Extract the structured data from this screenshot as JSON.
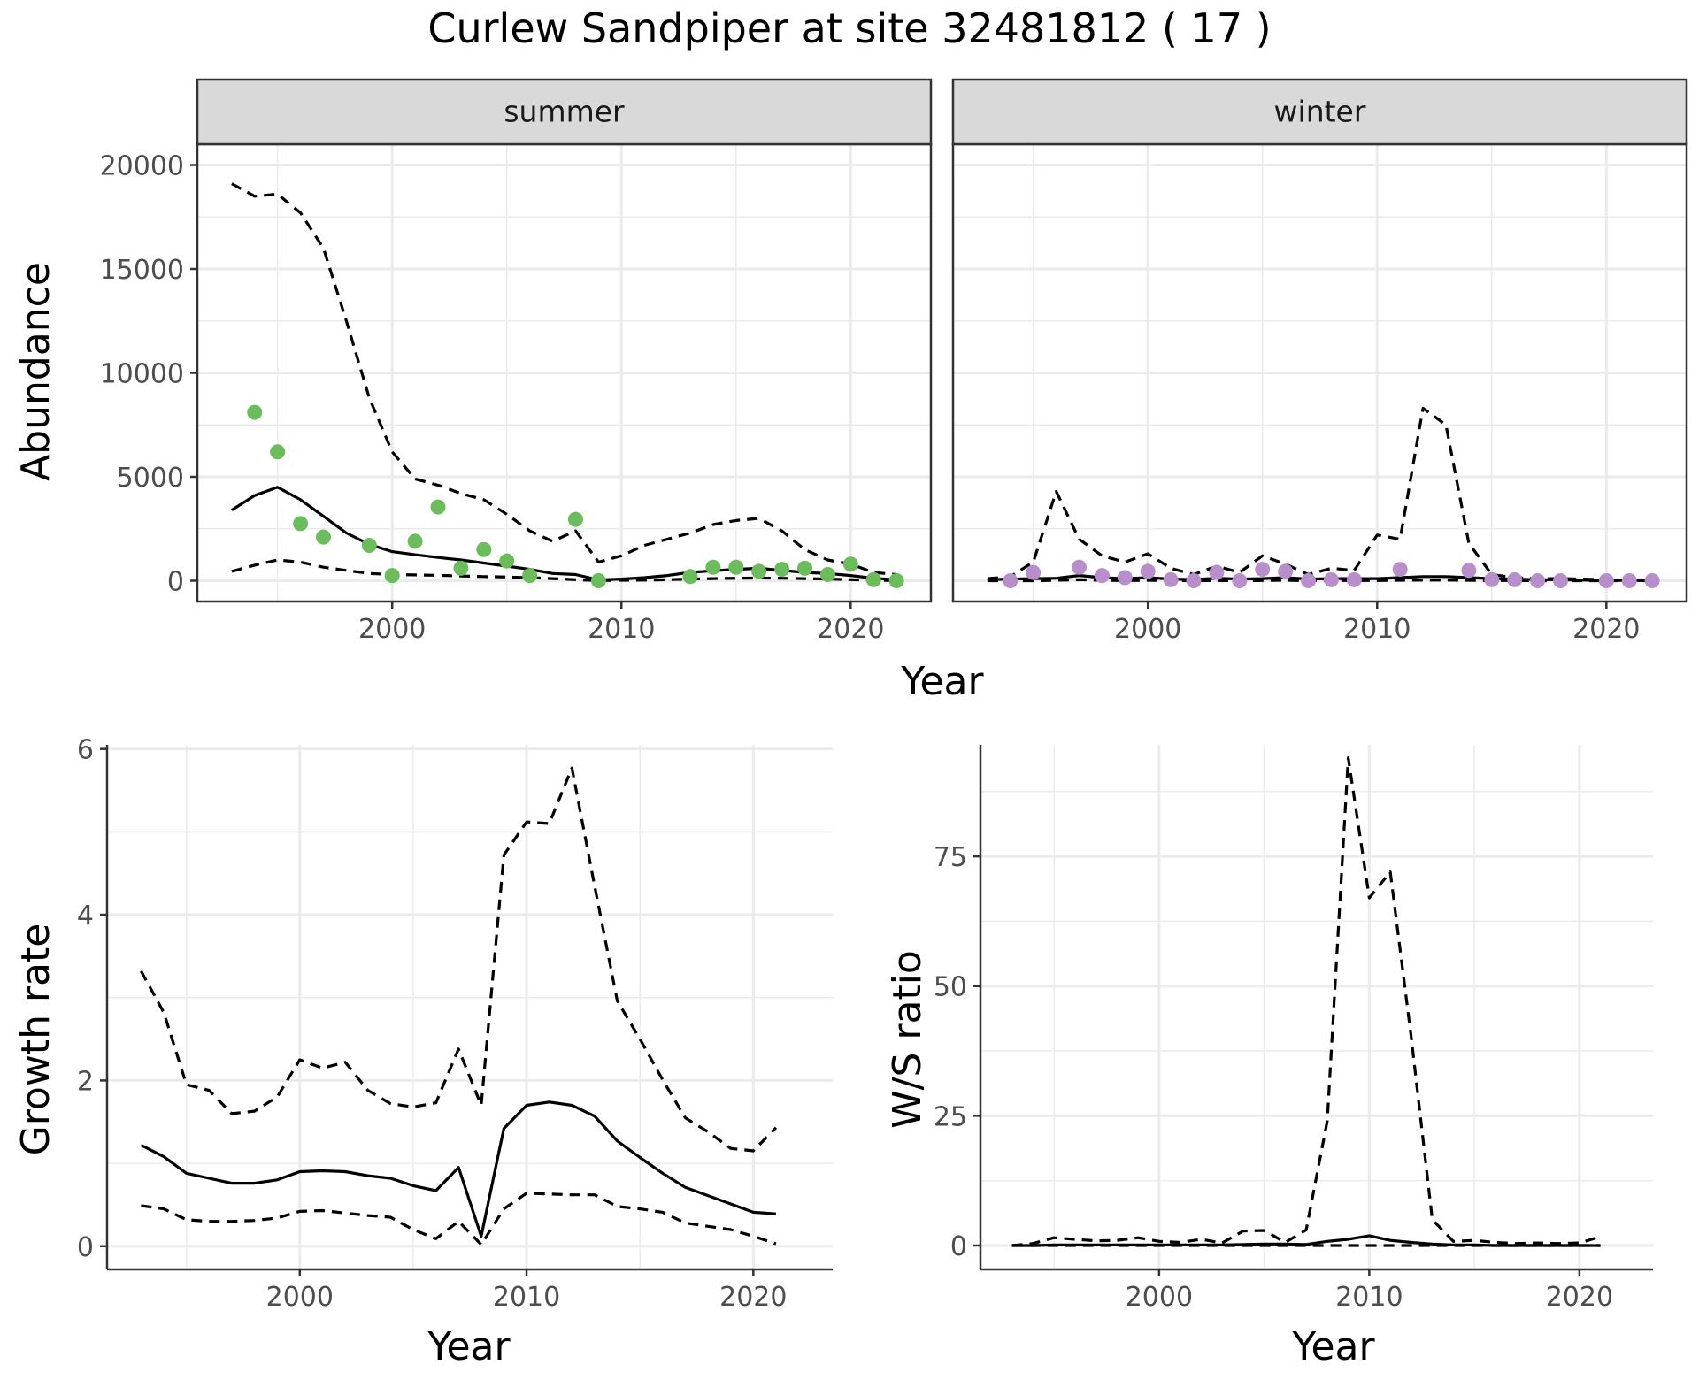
{
  "title": "Curlew Sandpiper at site 32481812 ( 17 )",
  "colors": {
    "summer_points": "#6abd5a",
    "winter_points": "#b88fca",
    "lines": "#000000",
    "grid": "#ebebeb",
    "strip_bg": "#d9d9d9"
  },
  "chart_data": [
    {
      "id": "summer",
      "type": "scatter",
      "panel_label": "summer",
      "ylabel": "Abundance",
      "xlabel": "Year",
      "xlim": [
        1991.5,
        2023.5
      ],
      "ylim": [
        -1000,
        21000
      ],
      "xticks": [
        2000,
        2010,
        2020
      ],
      "yticks": [
        0,
        5000,
        10000,
        15000,
        20000
      ],
      "points": {
        "x": [
          1994,
          1995,
          1996,
          1997,
          1999,
          2000,
          2001,
          2002,
          2003,
          2004,
          2005,
          2006,
          2008,
          2009,
          2013,
          2014,
          2015,
          2016,
          2017,
          2018,
          2019,
          2020,
          2021,
          2022
        ],
        "y": [
          8100,
          6200,
          2750,
          2100,
          1700,
          250,
          1900,
          3550,
          600,
          1500,
          950,
          250,
          2950,
          0,
          200,
          650,
          650,
          450,
          550,
          600,
          300,
          800,
          50,
          0
        ]
      },
      "series": [
        {
          "style": "solid",
          "x": [
            1993,
            1994,
            1995,
            1996,
            1997,
            1998,
            1999,
            2000,
            2001,
            2002,
            2003,
            2004,
            2005,
            2006,
            2007,
            2008,
            2009,
            2010,
            2011,
            2012,
            2013,
            2014,
            2015,
            2016,
            2017,
            2018,
            2019,
            2020,
            2021,
            2022
          ],
          "y": [
            3400,
            4100,
            4500,
            3900,
            3100,
            2300,
            1750,
            1400,
            1250,
            1120,
            1000,
            850,
            700,
            550,
            350,
            300,
            40,
            80,
            150,
            250,
            400,
            480,
            550,
            600,
            500,
            400,
            350,
            250,
            120,
            50
          ]
        },
        {
          "style": "dashed",
          "x": [
            1993,
            1994,
            1995,
            1996,
            1997,
            1998,
            1999,
            2000,
            2001,
            2002,
            2003,
            2004,
            2005,
            2006,
            2007,
            2008,
            2009,
            2010,
            2011,
            2012,
            2013,
            2014,
            2015,
            2016,
            2017,
            2018,
            2019,
            2020,
            2021,
            2022
          ],
          "y": [
            19100,
            18500,
            18600,
            17700,
            16000,
            12500,
            8800,
            6200,
            4900,
            4600,
            4200,
            3900,
            3200,
            2400,
            1900,
            2400,
            900,
            1200,
            1700,
            2000,
            2300,
            2700,
            2900,
            3000,
            2400,
            1500,
            1000,
            800,
            400,
            300
          ]
        },
        {
          "style": "dashed",
          "x": [
            1993,
            1994,
            1995,
            1996,
            1997,
            1998,
            1999,
            2000,
            2001,
            2002,
            2003,
            2004,
            2005,
            2006,
            2007,
            2008,
            2009,
            2010,
            2011,
            2012,
            2013,
            2014,
            2015,
            2016,
            2017,
            2018,
            2019,
            2020,
            2021,
            2022
          ],
          "y": [
            450,
            750,
            1000,
            900,
            650,
            500,
            350,
            300,
            280,
            260,
            230,
            200,
            180,
            150,
            100,
            50,
            10,
            20,
            30,
            50,
            80,
            100,
            120,
            130,
            120,
            100,
            80,
            50,
            20,
            10
          ]
        }
      ]
    },
    {
      "id": "winter",
      "type": "scatter",
      "panel_label": "winter",
      "xlabel": "Year",
      "xlim": [
        1991.5,
        2023.5
      ],
      "ylim": [
        -1000,
        21000
      ],
      "xticks": [
        2000,
        2010,
        2020
      ],
      "points": {
        "x": [
          1994,
          1995,
          1997,
          1998,
          1999,
          2000,
          2001,
          2002,
          2003,
          2004,
          2005,
          2006,
          2007,
          2008,
          2009,
          2011,
          2014,
          2015,
          2016,
          2017,
          2018,
          2020,
          2021,
          2022
        ],
        "y": [
          0,
          400,
          650,
          250,
          150,
          450,
          50,
          0,
          400,
          0,
          550,
          450,
          0,
          50,
          50,
          550,
          500,
          50,
          50,
          0,
          0,
          0,
          0,
          0
        ]
      },
      "series": [
        {
          "style": "solid",
          "x": [
            1993,
            1994,
            1995,
            1996,
            1997,
            1998,
            1999,
            2000,
            2001,
            2002,
            2003,
            2004,
            2005,
            2006,
            2007,
            2008,
            2009,
            2010,
            2011,
            2012,
            2013,
            2014,
            2015,
            2016,
            2017,
            2018,
            2019,
            2020,
            2021,
            2022
          ],
          "y": [
            50,
            80,
            100,
            120,
            250,
            150,
            100,
            150,
            80,
            60,
            120,
            80,
            100,
            150,
            80,
            100,
            100,
            100,
            150,
            200,
            200,
            150,
            100,
            80,
            50,
            50,
            30,
            20,
            10,
            10
          ]
        },
        {
          "style": "dashed",
          "x": [
            1993,
            1994,
            1995,
            1996,
            1997,
            1998,
            1999,
            2000,
            2001,
            2002,
            2003,
            2004,
            2005,
            2006,
            2007,
            2008,
            2009,
            2010,
            2011,
            2012,
            2013,
            2014,
            2015,
            2016,
            2017,
            2018,
            2019,
            2020,
            2021,
            2022
          ],
          "y": [
            100,
            200,
            900,
            4300,
            2000,
            1200,
            900,
            1300,
            600,
            300,
            700,
            400,
            1200,
            800,
            300,
            600,
            500,
            2200,
            2000,
            8300,
            7500,
            1800,
            300,
            150,
            100,
            100,
            80,
            50,
            30,
            20
          ]
        },
        {
          "style": "dashed",
          "x": [
            1993,
            1994,
            1995,
            1996,
            1997,
            1998,
            1999,
            2000,
            2001,
            2002,
            2003,
            2004,
            2005,
            2006,
            2007,
            2008,
            2009,
            2010,
            2011,
            2012,
            2013,
            2014,
            2015,
            2016,
            2017,
            2018,
            2019,
            2020,
            2021,
            2022
          ],
          "y": [
            0,
            0,
            0,
            20,
            50,
            20,
            10,
            20,
            10,
            0,
            10,
            0,
            10,
            20,
            0,
            10,
            10,
            10,
            20,
            30,
            30,
            20,
            10,
            10,
            0,
            0,
            0,
            0,
            0,
            0
          ]
        }
      ]
    },
    {
      "id": "growth",
      "type": "line",
      "ylabel": "Growth rate",
      "xlabel": "Year",
      "xlim": [
        1991.5,
        2023.5
      ],
      "ylim": [
        -0.28,
        6.05
      ],
      "xticks": [
        2000,
        2010,
        2020
      ],
      "yticks": [
        0,
        2,
        4,
        6
      ],
      "series": [
        {
          "style": "solid",
          "x": [
            1993,
            1994,
            1995,
            1996,
            1997,
            1998,
            1999,
            2000,
            2001,
            2002,
            2003,
            2004,
            2005,
            2006,
            2007,
            2008,
            2009,
            2010,
            2011,
            2012,
            2013,
            2014,
            2015,
            2016,
            2017,
            2018,
            2019,
            2020,
            2021
          ],
          "y": [
            1.22,
            1.08,
            0.88,
            0.82,
            0.76,
            0.76,
            0.8,
            0.9,
            0.91,
            0.9,
            0.85,
            0.82,
            0.73,
            0.67,
            0.95,
            0.12,
            1.42,
            1.7,
            1.74,
            1.7,
            1.57,
            1.27,
            1.07,
            0.88,
            0.71,
            0.61,
            0.51,
            0.41,
            0.39
          ]
        },
        {
          "style": "dashed",
          "x": [
            1993,
            1994,
            1995,
            1996,
            1997,
            1998,
            1999,
            2000,
            2001,
            2002,
            2003,
            2004,
            2005,
            2006,
            2007,
            2008,
            2009,
            2010,
            2011,
            2012,
            2013,
            2014,
            2015,
            2016,
            2017,
            2018,
            2019,
            2020,
            2021
          ],
          "y": [
            3.32,
            2.82,
            1.95,
            1.88,
            1.6,
            1.63,
            1.8,
            2.25,
            2.15,
            2.22,
            1.88,
            1.72,
            1.68,
            1.73,
            2.38,
            1.7,
            4.72,
            5.12,
            5.1,
            5.77,
            4.35,
            2.96,
            2.5,
            2.01,
            1.55,
            1.38,
            1.18,
            1.15,
            1.43
          ]
        },
        {
          "style": "dashed",
          "x": [
            1993,
            1994,
            1995,
            1996,
            1997,
            1998,
            1999,
            2000,
            2001,
            2002,
            2003,
            2004,
            2005,
            2006,
            2007,
            2008,
            2009,
            2010,
            2011,
            2012,
            2013,
            2014,
            2015,
            2016,
            2017,
            2018,
            2019,
            2020,
            2021
          ],
          "y": [
            0.49,
            0.45,
            0.32,
            0.3,
            0.3,
            0.31,
            0.34,
            0.42,
            0.43,
            0.4,
            0.37,
            0.35,
            0.2,
            0.09,
            0.3,
            0.02,
            0.45,
            0.64,
            0.63,
            0.62,
            0.62,
            0.48,
            0.45,
            0.41,
            0.28,
            0.24,
            0.2,
            0.12,
            0.03
          ]
        }
      ]
    },
    {
      "id": "ratio",
      "type": "line",
      "ylabel": "W/S ratio",
      "xlabel": "Year",
      "xlim": [
        1991.5,
        2023.5
      ],
      "ylim": [
        -4.6,
        96.5
      ],
      "xticks": [
        2000,
        2010,
        2020
      ],
      "yticks": [
        0,
        25,
        50,
        75
      ],
      "series": [
        {
          "style": "solid",
          "x": [
            1993,
            1994,
            1995,
            1996,
            1997,
            1998,
            1999,
            2000,
            2001,
            2002,
            2003,
            2004,
            2005,
            2006,
            2007,
            2008,
            2009,
            2010,
            2011,
            2012,
            2013,
            2014,
            2015,
            2016,
            2017,
            2018,
            2019,
            2020,
            2021
          ],
          "y": [
            0,
            0,
            0.1,
            0.1,
            0.1,
            0.1,
            0.1,
            0.1,
            0.1,
            0.1,
            0.1,
            0.2,
            0.3,
            0.3,
            0.2,
            0.8,
            1.2,
            1.9,
            1.0,
            0.6,
            0.3,
            0.1,
            0.1,
            0,
            0,
            0,
            0,
            0,
            0
          ]
        },
        {
          "style": "dashed",
          "x": [
            1993,
            1994,
            1995,
            1996,
            1997,
            1998,
            1999,
            2000,
            2001,
            2002,
            2003,
            2004,
            2005,
            2006,
            2007,
            2008,
            2009,
            2010,
            2011,
            2012,
            2013,
            2014,
            2015,
            2016,
            2017,
            2018,
            2019,
            2020,
            2021
          ],
          "y": [
            0,
            0.4,
            1.5,
            1.2,
            0.9,
            1.0,
            1.5,
            0.8,
            0.6,
            1.2,
            0.5,
            2.8,
            2.9,
            0.6,
            3.0,
            24.0,
            94.0,
            67.0,
            72.0,
            40.0,
            5.0,
            0.8,
            1.0,
            0.6,
            0.4,
            0.5,
            0.4,
            0.5,
            1.7
          ]
        },
        {
          "style": "dashed",
          "x": [
            1993,
            1994,
            1995,
            1996,
            1997,
            1998,
            1999,
            2000,
            2001,
            2002,
            2003,
            2004,
            2005,
            2006,
            2007,
            2008,
            2009,
            2010,
            2011,
            2012,
            2013,
            2014,
            2015,
            2016,
            2017,
            2018,
            2019,
            2020,
            2021
          ],
          "y": [
            0,
            0,
            0,
            0,
            0,
            0,
            0,
            0,
            0,
            0,
            0,
            0,
            0,
            0,
            0,
            0,
            0,
            0,
            0,
            0,
            0,
            0,
            0,
            0,
            0,
            0,
            0,
            0,
            0
          ]
        }
      ]
    }
  ]
}
